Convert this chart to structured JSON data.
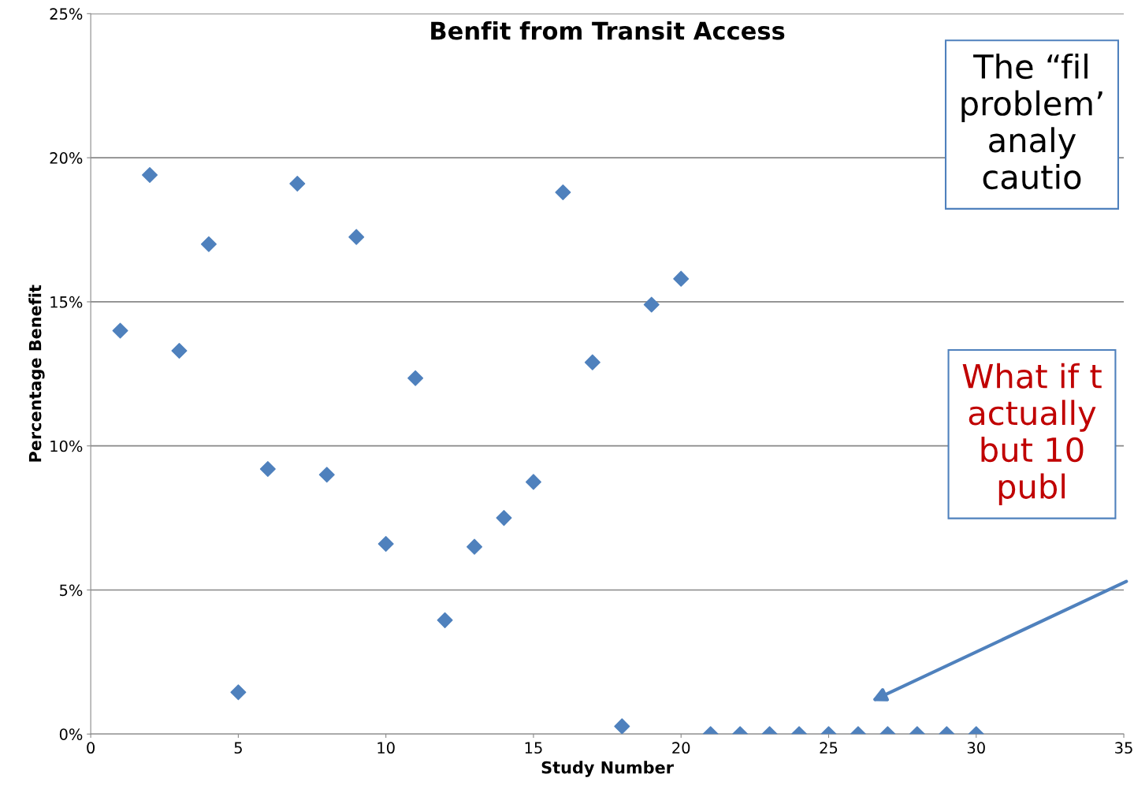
{
  "chart_data": {
    "type": "scatter",
    "title": "Benfit from Transit Access",
    "xlabel": "Study Number",
    "ylabel": "Percentage Benefit",
    "x": [
      1,
      2,
      3,
      4,
      5,
      6,
      7,
      8,
      9,
      10,
      11,
      12,
      13,
      14,
      15,
      16,
      17,
      18,
      19,
      20,
      21,
      22,
      23,
      24,
      25,
      26,
      27,
      28,
      29,
      30
    ],
    "series": [
      {
        "color": "#4f81bd",
        "values": [
          14.0,
          19.4,
          13.3,
          17.0,
          1.45,
          9.2,
          19.1,
          9.0,
          17.25,
          6.6,
          12.35,
          3.95,
          6.5,
          7.5,
          8.75,
          18.8,
          12.9,
          0.27,
          14.9,
          15.8,
          0,
          0,
          0,
          0,
          0,
          0,
          0,
          0,
          0,
          0
        ]
      }
    ],
    "marker": "diamond",
    "grid": "y",
    "legend": false,
    "xlim": [
      0,
      35
    ],
    "xticks": [
      0,
      5,
      10,
      15,
      20,
      25,
      30,
      35
    ],
    "ylim": [
      0,
      25
    ],
    "yticks": [
      {
        "value": 0,
        "label": "0%"
      },
      {
        "value": 5,
        "label": "5%"
      },
      {
        "value": 10,
        "label": "10%"
      },
      {
        "value": 15,
        "label": "15%"
      },
      {
        "value": 20,
        "label": "20%"
      },
      {
        "value": 25,
        "label": "25%"
      }
    ],
    "annotations": [
      "The “fil\nproblem’\nanaly\ncautio",
      "What if t\nactually\nbut 10\npubl"
    ]
  }
}
